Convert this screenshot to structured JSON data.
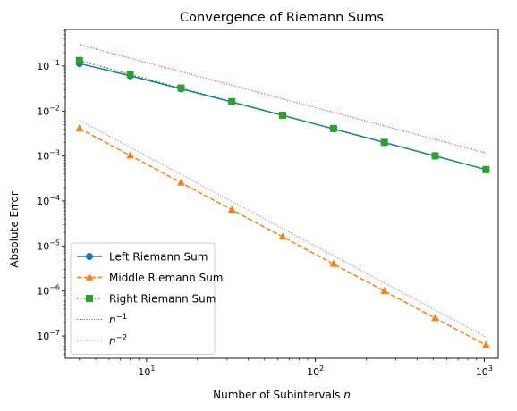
{
  "chart_data": {
    "type": "line",
    "title": "Convergence of Riemann Sums",
    "xlabel": "Number of Subintervals n",
    "ylabel": "Absolute Error",
    "xscale": "log",
    "yscale": "log",
    "xlim": [
      3.3,
      1210
    ],
    "ylim": [
      3.2e-08,
      0.65
    ],
    "grid": false,
    "legend_position": "lower-left",
    "x_ticks": [
      {
        "value": 10,
        "base": "10",
        "exp": "1"
      },
      {
        "value": 100,
        "base": "10",
        "exp": "2"
      },
      {
        "value": 1000,
        "base": "10",
        "exp": "3"
      }
    ],
    "y_ticks": [
      {
        "value": 1e-07,
        "base": "10",
        "exp": "−7"
      },
      {
        "value": 1e-06,
        "base": "10",
        "exp": "−6"
      },
      {
        "value": 1e-05,
        "base": "10",
        "exp": "−5"
      },
      {
        "value": 0.0001,
        "base": "10",
        "exp": "−4"
      },
      {
        "value": 0.001,
        "base": "10",
        "exp": "−3"
      },
      {
        "value": 0.01,
        "base": "10",
        "exp": "−2"
      },
      {
        "value": 0.1,
        "base": "10",
        "exp": "−1"
      }
    ],
    "series": [
      {
        "name": "Left Riemann Sum",
        "color": "#1f77b4",
        "linestyle": "solid",
        "marker": "circle",
        "x": [
          4,
          8,
          16,
          32,
          64,
          128,
          256,
          512,
          1024
        ],
        "y": [
          0.114,
          0.0607,
          0.0313,
          0.0159,
          0.008,
          0.004,
          0.002,
          0.001,
          0.0005
        ]
      },
      {
        "name": "Middle Riemann Sum",
        "color": "#ff7f0e",
        "linestyle": "dashed",
        "marker": "triangle",
        "x": [
          4,
          8,
          16,
          32,
          64,
          128,
          256,
          512,
          1024
        ],
        "y": [
          0.0041,
          0.00103,
          0.000257,
          6.4e-05,
          1.6e-05,
          4e-06,
          1e-06,
          2.5e-07,
          6.3e-08
        ]
      },
      {
        "name": "Right Riemann Sum",
        "color": "#2ca02c",
        "linestyle": "dotted",
        "marker": "square",
        "x": [
          4,
          8,
          16,
          32,
          64,
          128,
          256,
          512,
          1024
        ],
        "y": [
          0.133,
          0.0653,
          0.0325,
          0.0162,
          0.0081,
          0.0041,
          0.00202,
          0.00101,
          0.0005
        ]
      },
      {
        "name": "n^-1",
        "legend_base": "n",
        "legend_exp": "−1",
        "color": "#d62728",
        "linestyle": "dotted-fine",
        "marker": "none",
        "x": [
          4,
          1024
        ],
        "y": [
          0.3,
          0.00117
        ]
      },
      {
        "name": "n^-2",
        "legend_base": "n",
        "legend_exp": "−2",
        "color": "#9467bd",
        "linestyle": "dotted-fine",
        "marker": "none",
        "x": [
          4,
          1024
        ],
        "y": [
          0.00625,
          9.5e-08
        ]
      }
    ]
  }
}
